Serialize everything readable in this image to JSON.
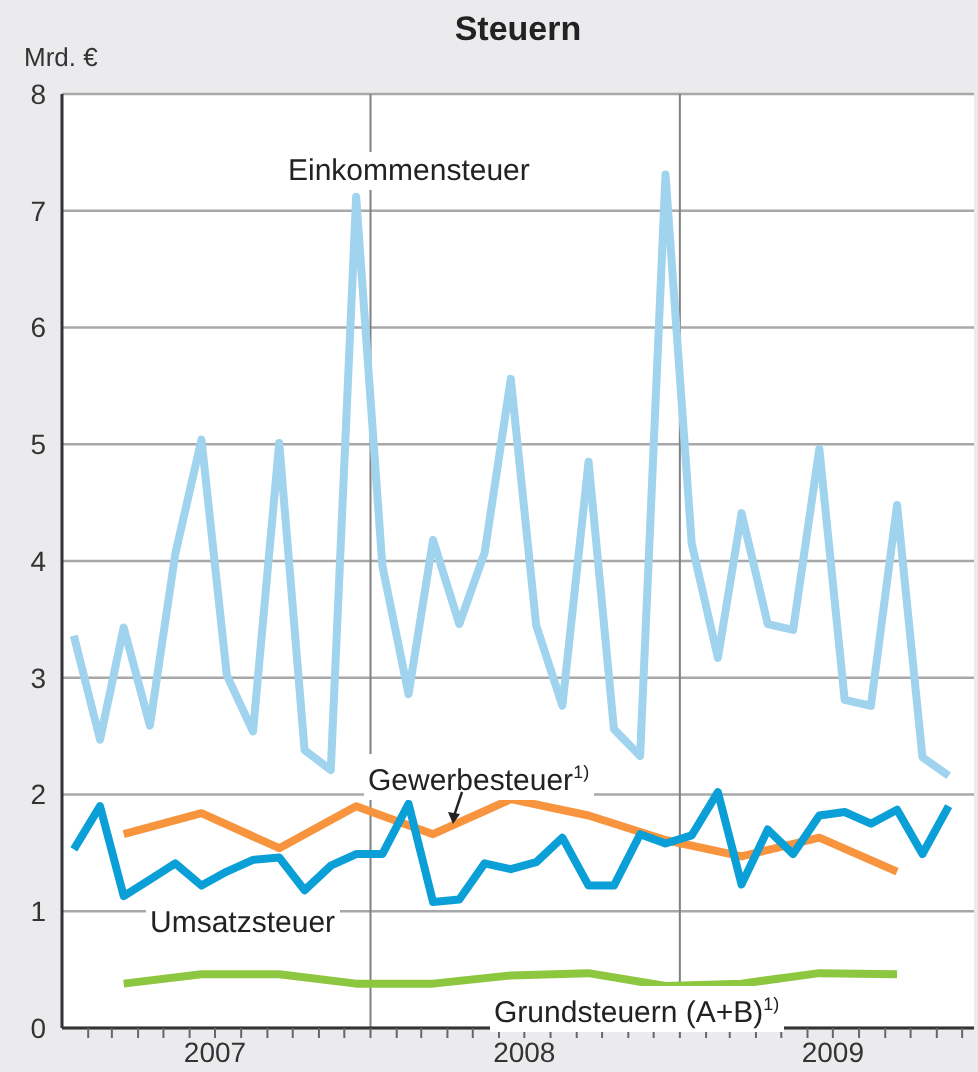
{
  "chart_data": {
    "type": "line",
    "title": "Steuern",
    "ylabel": "Mrd. €",
    "ylim": [
      0,
      8
    ],
    "yticks": [
      0,
      1,
      2,
      3,
      4,
      5,
      6,
      7,
      8
    ],
    "grid": "y",
    "marker": "none",
    "xlim": [
      "2007-01-01",
      "2009-12-15"
    ],
    "xticks": [
      {
        "value": "2007-02-01",
        "label": null
      },
      {
        "value": "2007-03-01",
        "label": null
      },
      {
        "value": "2007-04-01",
        "label": null
      },
      {
        "value": "2007-05-01",
        "label": null
      },
      {
        "value": "2007-06-01",
        "label": null
      },
      {
        "value": "2007-07-01",
        "label": "2007"
      },
      {
        "value": "2007-08-01",
        "label": null
      },
      {
        "value": "2007-09-01",
        "label": null
      },
      {
        "value": "2007-10-01",
        "label": null
      },
      {
        "value": "2007-11-01",
        "label": null
      },
      {
        "value": "2007-12-01",
        "label": null
      },
      {
        "value": "2008-01-01",
        "label": null
      },
      {
        "value": "2008-02-01",
        "label": null
      },
      {
        "value": "2008-03-01",
        "label": null
      },
      {
        "value": "2008-04-01",
        "label": null
      },
      {
        "value": "2008-05-01",
        "label": null
      },
      {
        "value": "2008-06-01",
        "label": null
      },
      {
        "value": "2008-07-01",
        "label": "2008"
      },
      {
        "value": "2008-08-01",
        "label": null
      },
      {
        "value": "2008-09-01",
        "label": null
      },
      {
        "value": "2008-10-01",
        "label": null
      },
      {
        "value": "2008-11-01",
        "label": null
      },
      {
        "value": "2008-12-01",
        "label": null
      },
      {
        "value": "2009-01-01",
        "label": null
      },
      {
        "value": "2009-02-01",
        "label": null
      },
      {
        "value": "2009-03-01",
        "label": null
      },
      {
        "value": "2009-04-01",
        "label": null
      },
      {
        "value": "2009-05-01",
        "label": null
      },
      {
        "value": "2009-06-01",
        "label": null
      },
      {
        "value": "2009-07-01",
        "label": "2009"
      },
      {
        "value": "2009-08-01",
        "label": null
      },
      {
        "value": "2009-09-01",
        "label": null
      },
      {
        "value": "2009-10-01",
        "label": null
      },
      {
        "value": "2009-11-01",
        "label": null
      },
      {
        "value": "2009-12-01",
        "label": null
      }
    ],
    "ref_lines": [
      {
        "axis": "x",
        "value": "2008-01-01",
        "color": "#808080"
      },
      {
        "axis": "x",
        "value": "2009-01-01",
        "color": "#808080"
      }
    ],
    "series": [
      {
        "name": "Einkommensteuer",
        "color": "#9fd3ee",
        "x": [
          "2007-01-15",
          "2007-02-15",
          "2007-03-15",
          "2007-04-15",
          "2007-05-15",
          "2007-06-15",
          "2007-07-15",
          "2007-08-15",
          "2007-09-15",
          "2007-10-15",
          "2007-11-15",
          "2007-12-15",
          "2008-01-15",
          "2008-02-15",
          "2008-03-15",
          "2008-04-15",
          "2008-05-15",
          "2008-06-15",
          "2008-07-15",
          "2008-08-15",
          "2008-09-15",
          "2008-10-15",
          "2008-11-15",
          "2008-12-15",
          "2009-01-15",
          "2009-02-15",
          "2009-03-15",
          "2009-04-15",
          "2009-05-15",
          "2009-06-15",
          "2009-07-15",
          "2009-08-15",
          "2009-09-15",
          "2009-10-15",
          "2009-11-15"
        ],
        "values": [
          3.36,
          2.47,
          3.43,
          2.59,
          4.06,
          5.04,
          3.02,
          2.54,
          5.01,
          2.38,
          2.21,
          7.12,
          3.96,
          2.86,
          4.18,
          3.46,
          4.07,
          5.56,
          3.45,
          2.76,
          4.85,
          2.56,
          2.33,
          7.31,
          4.15,
          3.17,
          4.41,
          3.46,
          3.41,
          4.96,
          2.81,
          2.76,
          4.48,
          2.32,
          2.16
        ]
      },
      {
        "name": "Gewerbesteuer$^{1)}$",
        "color": "#f7943d",
        "x": [
          "2007-03-15",
          "2007-06-15",
          "2007-09-15",
          "2007-12-15",
          "2008-03-15",
          "2008-06-15",
          "2008-09-15",
          "2008-12-15",
          "2009-03-15",
          "2009-06-15",
          "2009-09-15"
        ],
        "values": [
          1.66,
          1.84,
          1.54,
          1.9,
          1.66,
          1.96,
          1.82,
          1.61,
          1.47,
          1.63,
          1.34
        ]
      },
      {
        "name": "Umsatzsteuer",
        "color": "#0a9fd6",
        "x": [
          "2007-01-15",
          "2007-02-15",
          "2007-03-15",
          "2007-04-15",
          "2007-05-15",
          "2007-06-15",
          "2007-07-15",
          "2007-08-15",
          "2007-09-15",
          "2007-10-15",
          "2007-11-15",
          "2007-12-15",
          "2008-01-15",
          "2008-02-15",
          "2008-03-15",
          "2008-04-15",
          "2008-05-15",
          "2008-06-15",
          "2008-07-15",
          "2008-08-15",
          "2008-09-15",
          "2008-10-15",
          "2008-11-15",
          "2008-12-15",
          "2009-01-15",
          "2009-02-15",
          "2009-03-15",
          "2009-04-15",
          "2009-05-15",
          "2009-06-15",
          "2009-07-15",
          "2009-08-15",
          "2009-09-15",
          "2009-10-15",
          "2009-11-15"
        ],
        "values": [
          1.53,
          1.9,
          1.13,
          1.27,
          1.41,
          1.22,
          1.34,
          1.44,
          1.46,
          1.18,
          1.39,
          1.49,
          1.49,
          1.92,
          1.08,
          1.1,
          1.41,
          1.36,
          1.42,
          1.63,
          1.22,
          1.22,
          1.66,
          1.58,
          1.65,
          2.02,
          1.23,
          1.7,
          1.49,
          1.82,
          1.85,
          1.75,
          1.87,
          1.49,
          1.9
        ]
      },
      {
        "name": "Grundsteuern (A+B)$^{1)}$",
        "color": "#8dc63f",
        "x": [
          "2007-03-15",
          "2007-06-15",
          "2007-09-15",
          "2007-12-15",
          "2008-03-15",
          "2008-06-15",
          "2008-09-15",
          "2008-12-15",
          "2009-03-15",
          "2009-06-15",
          "2009-09-15"
        ],
        "values": [
          0.38,
          0.46,
          0.46,
          0.38,
          0.38,
          0.45,
          0.47,
          0.36,
          0.38,
          0.47,
          0.46
        ]
      }
    ]
  }
}
